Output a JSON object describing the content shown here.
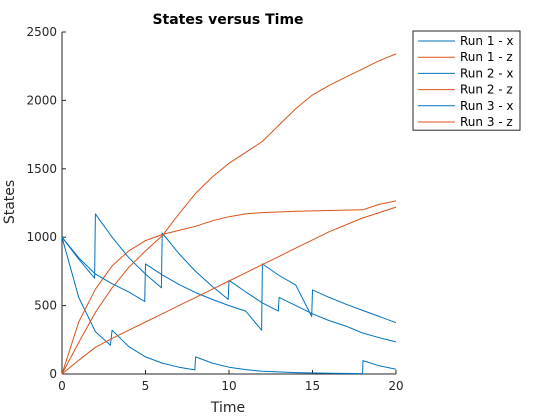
{
  "chart_data": {
    "type": "line",
    "title": "States versus Time",
    "xlabel": "Time",
    "ylabel": "States",
    "xlim": [
      0,
      20
    ],
    "ylim": [
      0,
      2500
    ],
    "xticks": [
      0,
      5,
      10,
      15,
      20
    ],
    "yticks": [
      0,
      500,
      1000,
      1500,
      2000,
      2500
    ],
    "grid": false,
    "legend": "outside-top-right",
    "colors": {
      "x": "#0072BD",
      "z": "#D95319"
    },
    "series": [
      {
        "name": "Run 1 - x",
        "color": "#0072BD",
        "points": [
          [
            0,
            1000
          ],
          [
            1,
            560
          ],
          [
            2,
            310
          ],
          [
            2.9,
            210
          ],
          [
            3,
            320
          ],
          [
            4,
            200
          ],
          [
            5,
            125
          ],
          [
            6,
            80
          ],
          [
            7,
            50
          ],
          [
            7.95,
            30
          ],
          [
            8,
            125
          ],
          [
            9,
            80
          ],
          [
            10,
            50
          ],
          [
            11,
            32
          ],
          [
            12,
            20
          ],
          [
            14,
            10
          ],
          [
            16,
            5
          ],
          [
            18,
            3
          ],
          [
            18.02,
            98
          ],
          [
            19,
            60
          ],
          [
            20,
            35
          ]
        ]
      },
      {
        "name": "Run 1 - z",
        "color": "#D95319",
        "points": [
          [
            0,
            0
          ],
          [
            1,
            380
          ],
          [
            2,
            620
          ],
          [
            3,
            790
          ],
          [
            4,
            900
          ],
          [
            5,
            975
          ],
          [
            6,
            1020
          ],
          [
            7,
            1050
          ],
          [
            8,
            1080
          ],
          [
            9,
            1120
          ],
          [
            10,
            1150
          ],
          [
            11,
            1170
          ],
          [
            12,
            1180
          ],
          [
            14,
            1190
          ],
          [
            16,
            1195
          ],
          [
            18,
            1200
          ],
          [
            19,
            1240
          ],
          [
            20,
            1265
          ]
        ]
      },
      {
        "name": "Run 2 - x",
        "color": "#0072BD",
        "points": [
          [
            0,
            1000
          ],
          [
            1,
            840
          ],
          [
            1.95,
            700
          ],
          [
            2,
            1170
          ],
          [
            3,
            1000
          ],
          [
            4,
            850
          ],
          [
            5,
            730
          ],
          [
            5.95,
            630
          ],
          [
            6,
            1030
          ],
          [
            7,
            880
          ],
          [
            8,
            750
          ],
          [
            9,
            640
          ],
          [
            9.95,
            545
          ],
          [
            10,
            685
          ],
          [
            11,
            600
          ],
          [
            12,
            520
          ],
          [
            12.95,
            460
          ],
          [
            13,
            560
          ],
          [
            14,
            500
          ],
          [
            15,
            440
          ],
          [
            16,
            390
          ],
          [
            17,
            350
          ],
          [
            18,
            300
          ],
          [
            19,
            265
          ],
          [
            20,
            235
          ]
        ]
      },
      {
        "name": "Run 2 - z",
        "color": "#D95319",
        "points": [
          [
            0,
            0
          ],
          [
            1,
            230
          ],
          [
            2,
            450
          ],
          [
            3,
            630
          ],
          [
            4,
            780
          ],
          [
            5,
            900
          ],
          [
            6,
            1010
          ],
          [
            7,
            1170
          ],
          [
            8,
            1320
          ],
          [
            9,
            1440
          ],
          [
            10,
            1540
          ],
          [
            11,
            1620
          ],
          [
            12,
            1700
          ],
          [
            13,
            1820
          ],
          [
            14,
            1940
          ],
          [
            15,
            2040
          ],
          [
            16,
            2110
          ],
          [
            17,
            2170
          ],
          [
            18,
            2230
          ],
          [
            19,
            2290
          ],
          [
            20,
            2340
          ]
        ]
      },
      {
        "name": "Run 3 - x",
        "color": "#0072BD",
        "points": [
          [
            0,
            1000
          ],
          [
            1,
            850
          ],
          [
            2,
            730
          ],
          [
            3,
            660
          ],
          [
            4,
            600
          ],
          [
            4.95,
            530
          ],
          [
            5,
            805
          ],
          [
            6,
            725
          ],
          [
            7,
            655
          ],
          [
            8,
            595
          ],
          [
            9,
            545
          ],
          [
            10,
            500
          ],
          [
            11,
            460
          ],
          [
            11.95,
            320
          ],
          [
            12,
            805
          ],
          [
            13,
            720
          ],
          [
            14,
            650
          ],
          [
            14.95,
            420
          ],
          [
            15,
            615
          ],
          [
            16,
            560
          ],
          [
            17,
            510
          ],
          [
            18,
            465
          ],
          [
            19,
            420
          ],
          [
            20,
            375
          ]
        ]
      },
      {
        "name": "Run 3 - z",
        "color": "#D95319",
        "points": [
          [
            0,
            0
          ],
          [
            1,
            100
          ],
          [
            2,
            195
          ],
          [
            3,
            260
          ],
          [
            4,
            320
          ],
          [
            5,
            380
          ],
          [
            6,
            440
          ],
          [
            7,
            500
          ],
          [
            8,
            560
          ],
          [
            9,
            620
          ],
          [
            10,
            680
          ],
          [
            11,
            740
          ],
          [
            12,
            800
          ],
          [
            13,
            860
          ],
          [
            14,
            920
          ],
          [
            15,
            980
          ],
          [
            16,
            1040
          ],
          [
            17,
            1090
          ],
          [
            18,
            1140
          ],
          [
            19,
            1180
          ],
          [
            20,
            1220
          ]
        ]
      }
    ]
  }
}
